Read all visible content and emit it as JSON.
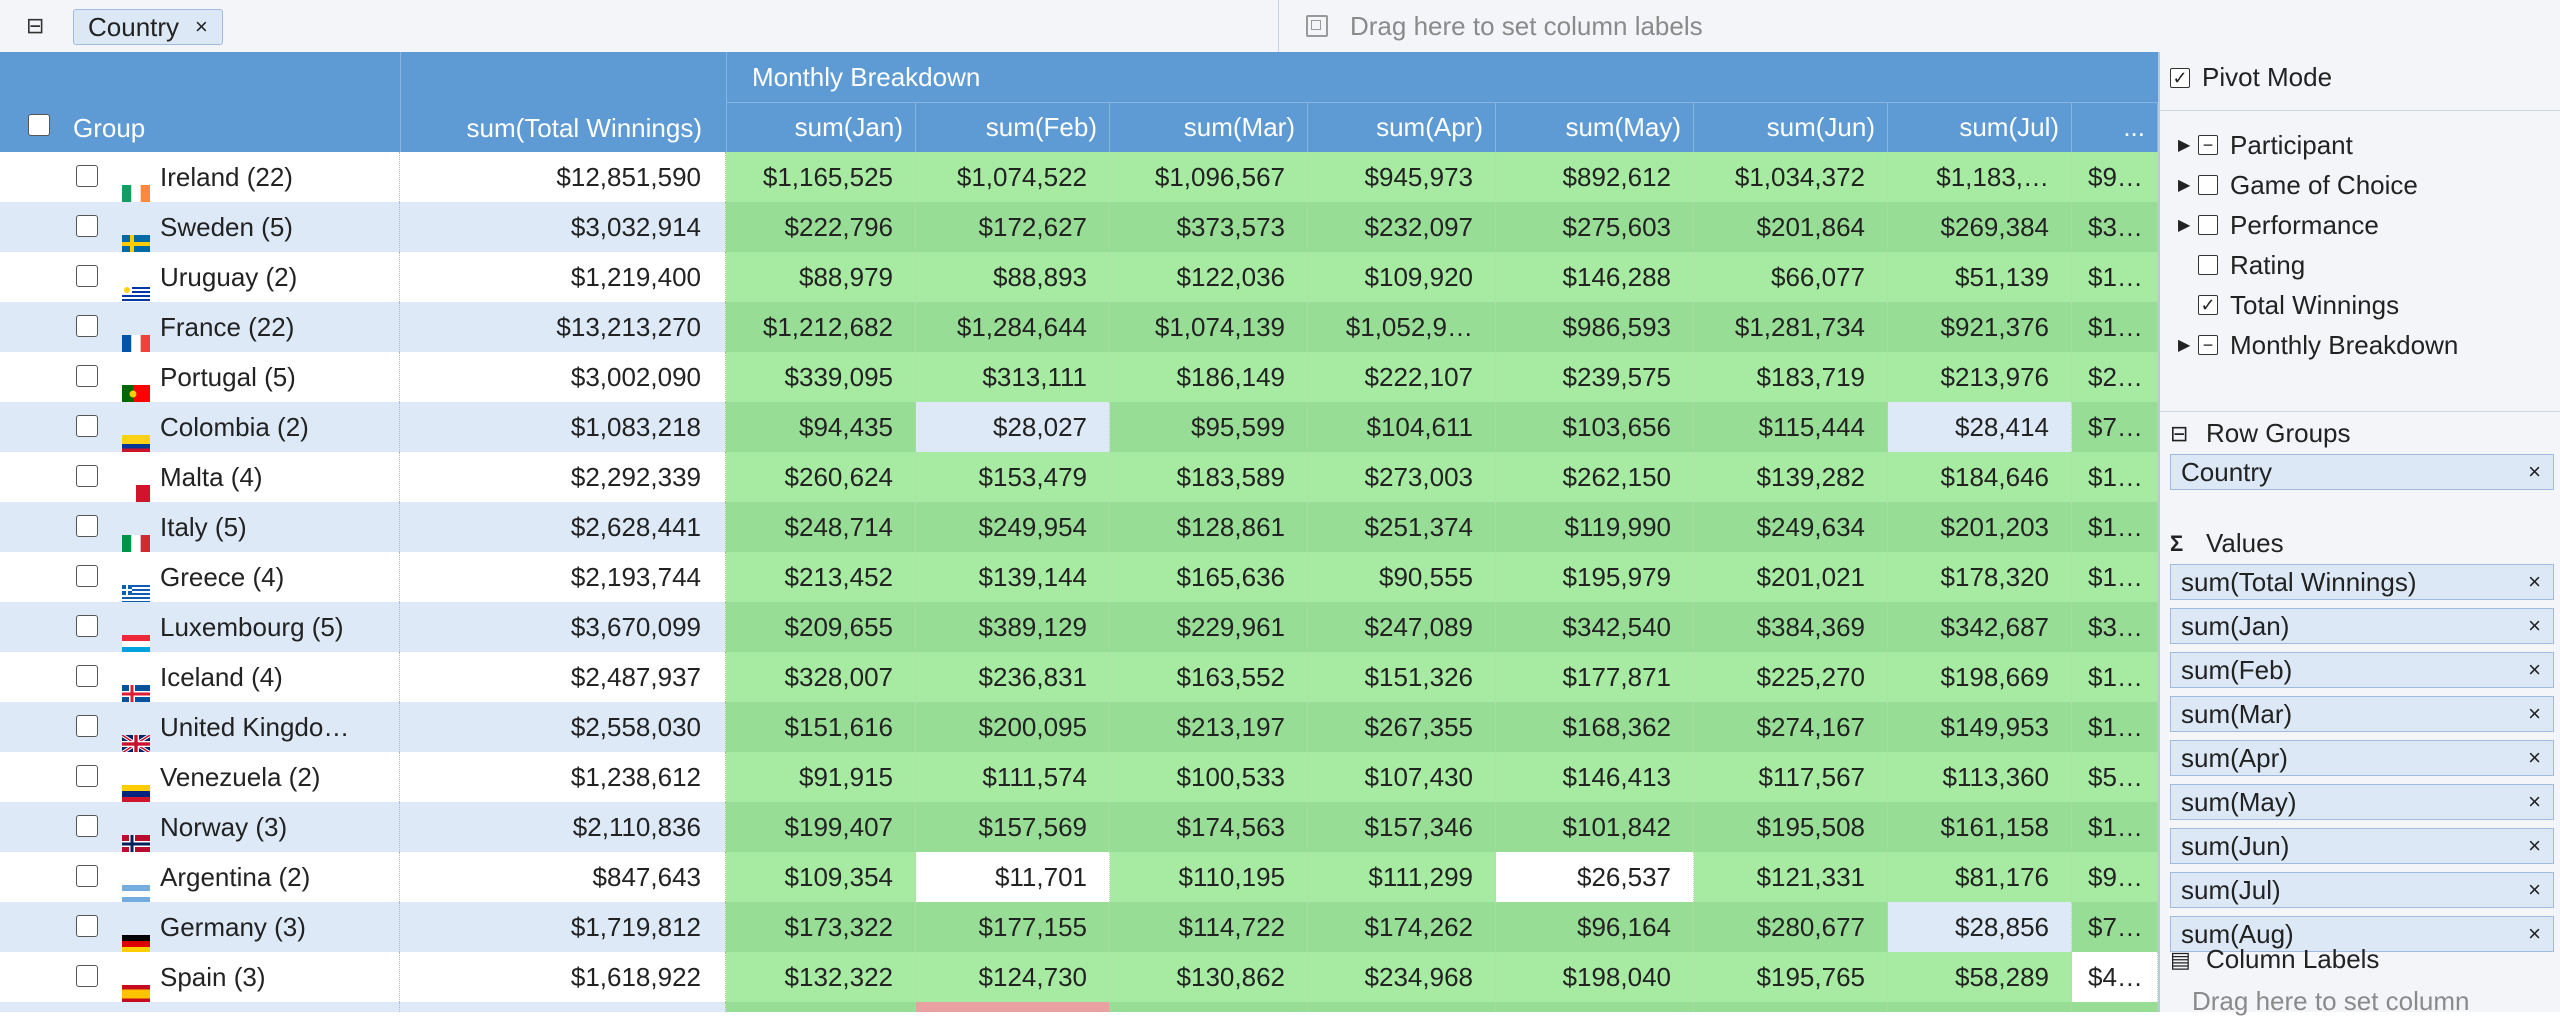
{
  "row_drop": {
    "chip_label": "Country",
    "chip_close": "×"
  },
  "col_drop": {
    "placeholder": "Drag here to set column labels"
  },
  "grid": {
    "group_header": "Group",
    "sum_header": "sum(Total Winnings)",
    "monthly_header": "Monthly Breakdown",
    "month_headers": [
      "sum(Jan)",
      "sum(Feb)",
      "sum(Mar)",
      "sum(Apr)",
      "sum(May)",
      "sum(Jun)",
      "sum(Jul)",
      "..."
    ],
    "rows": [
      {
        "name": "Ireland (22)",
        "flag": "ireland",
        "total": "$12,851,590",
        "m": [
          "$1,165,525",
          "$1,074,522",
          "$1,096,567",
          "$945,973",
          "$892,612",
          "$1,034,372",
          "$1,183,…",
          "$9…"
        ],
        "shade": [
          "h",
          "h",
          "h",
          "h",
          "h",
          "h",
          "h",
          "h"
        ]
      },
      {
        "name": "Sweden (5)",
        "flag": "sweden",
        "total": "$3,032,914",
        "m": [
          "$222,796",
          "$172,627",
          "$373,573",
          "$232,097",
          "$275,603",
          "$201,864",
          "$269,384",
          "$3…"
        ],
        "shade": [
          "h",
          "h",
          "h",
          "h",
          "h",
          "h",
          "h",
          "h"
        ]
      },
      {
        "name": "Uruguay (2)",
        "flag": "uruguay",
        "total": "$1,219,400",
        "m": [
          "$88,979",
          "$88,893",
          "$122,036",
          "$109,920",
          "$146,288",
          "$66,077",
          "$51,139",
          "$1…"
        ],
        "shade": [
          "h",
          "h",
          "h",
          "h",
          "h",
          "h",
          "h",
          "h"
        ]
      },
      {
        "name": "France (22)",
        "flag": "france",
        "total": "$13,213,270",
        "m": [
          "$1,212,682",
          "$1,284,644",
          "$1,074,139",
          "$1,052,9…",
          "$986,593",
          "$1,281,734",
          "$921,376",
          "$1…"
        ],
        "shade": [
          "h",
          "h",
          "h",
          "h",
          "h",
          "h",
          "h",
          "h"
        ]
      },
      {
        "name": "Portugal (5)",
        "flag": "portugal",
        "total": "$3,002,090",
        "m": [
          "$339,095",
          "$313,111",
          "$186,149",
          "$222,107",
          "$239,575",
          "$183,719",
          "$213,976",
          "$2…"
        ],
        "shade": [
          "h",
          "h",
          "h",
          "h",
          "h",
          "h",
          "h",
          "h"
        ]
      },
      {
        "name": "Colombia (2)",
        "flag": "colombia",
        "total": "$1,083,218",
        "m": [
          "$94,435",
          "$28,027",
          "$95,599",
          "$104,611",
          "$103,656",
          "$115,444",
          "$28,414",
          "$7…"
        ],
        "shade": [
          "h",
          "l",
          "h",
          "h",
          "h",
          "h",
          "l",
          "h"
        ]
      },
      {
        "name": "Malta (4)",
        "flag": "malta",
        "total": "$2,292,339",
        "m": [
          "$260,624",
          "$153,479",
          "$183,589",
          "$273,003",
          "$262,150",
          "$139,282",
          "$184,646",
          "$1…"
        ],
        "shade": [
          "h",
          "h",
          "h",
          "h",
          "h",
          "h",
          "h",
          "h"
        ]
      },
      {
        "name": "Italy (5)",
        "flag": "italy",
        "total": "$2,628,441",
        "m": [
          "$248,714",
          "$249,954",
          "$128,861",
          "$251,374",
          "$119,990",
          "$249,634",
          "$201,203",
          "$1…"
        ],
        "shade": [
          "h",
          "h",
          "h",
          "h",
          "h",
          "h",
          "h",
          "h"
        ]
      },
      {
        "name": "Greece (4)",
        "flag": "greece",
        "total": "$2,193,744",
        "m": [
          "$213,452",
          "$139,144",
          "$165,636",
          "$90,555",
          "$195,979",
          "$201,021",
          "$178,320",
          "$1…"
        ],
        "shade": [
          "h",
          "h",
          "h",
          "h",
          "h",
          "h",
          "h",
          "h"
        ]
      },
      {
        "name": "Luxembourg (5)",
        "flag": "luxembourg",
        "total": "$3,670,099",
        "m": [
          "$209,655",
          "$389,129",
          "$229,961",
          "$247,089",
          "$342,540",
          "$384,369",
          "$342,687",
          "$3…"
        ],
        "shade": [
          "h",
          "h",
          "h",
          "h",
          "h",
          "h",
          "h",
          "h"
        ]
      },
      {
        "name": "Iceland (4)",
        "flag": "iceland",
        "total": "$2,487,937",
        "m": [
          "$328,007",
          "$236,831",
          "$163,552",
          "$151,326",
          "$177,871",
          "$225,270",
          "$198,669",
          "$1…"
        ],
        "shade": [
          "h",
          "h",
          "h",
          "h",
          "h",
          "h",
          "h",
          "h"
        ]
      },
      {
        "name": "United Kingdo…",
        "flag": "uk",
        "total": "$2,558,030",
        "m": [
          "$151,616",
          "$200,095",
          "$213,197",
          "$267,355",
          "$168,362",
          "$274,167",
          "$149,953",
          "$1…"
        ],
        "shade": [
          "h",
          "h",
          "h",
          "h",
          "h",
          "h",
          "h",
          "h"
        ]
      },
      {
        "name": "Venezuela (2)",
        "flag": "venezuela",
        "total": "$1,238,612",
        "m": [
          "$91,915",
          "$111,574",
          "$100,533",
          "$107,430",
          "$146,413",
          "$117,567",
          "$113,360",
          "$5…"
        ],
        "shade": [
          "h",
          "h",
          "h",
          "h",
          "h",
          "h",
          "h",
          "h"
        ]
      },
      {
        "name": "Norway (3)",
        "flag": "norway",
        "total": "$2,110,836",
        "m": [
          "$199,407",
          "$157,569",
          "$174,563",
          "$157,346",
          "$101,842",
          "$195,508",
          "$161,158",
          "$1…"
        ],
        "shade": [
          "h",
          "h",
          "h",
          "h",
          "h",
          "h",
          "h",
          "h"
        ]
      },
      {
        "name": "Argentina (2)",
        "flag": "argentina",
        "total": "$847,643",
        "m": [
          "$109,354",
          "$11,701",
          "$110,195",
          "$111,299",
          "$26,537",
          "$121,331",
          "$81,176",
          "$9…"
        ],
        "shade": [
          "h",
          "l",
          "h",
          "h",
          "l",
          "h",
          "h",
          "h"
        ]
      },
      {
        "name": "Germany (3)",
        "flag": "germany",
        "total": "$1,719,812",
        "m": [
          "$173,322",
          "$177,155",
          "$114,722",
          "$174,262",
          "$96,164",
          "$280,677",
          "$28,856",
          "$7…"
        ],
        "shade": [
          "h",
          "h",
          "h",
          "h",
          "h",
          "h",
          "l",
          "h"
        ]
      },
      {
        "name": "Spain (3)",
        "flag": "spain",
        "total": "$1,618,922",
        "m": [
          "$132,322",
          "$124,730",
          "$130,862",
          "$234,968",
          "$198,040",
          "$195,765",
          "$58,289",
          "$4…"
        ],
        "shade": [
          "h",
          "h",
          "h",
          "h",
          "h",
          "h",
          "h",
          "l"
        ]
      },
      {
        "name": "",
        "flag": "",
        "total": "",
        "m": [
          "",
          "",
          "",
          "",
          "",
          "",
          "",
          ""
        ],
        "shade": [
          "h",
          "n",
          "h",
          "h",
          "h",
          "h",
          "h",
          "h"
        ]
      }
    ]
  },
  "side": {
    "pivot_mode": "Pivot Mode",
    "tree": [
      {
        "label": "Participant",
        "arrow": true,
        "state": "partial"
      },
      {
        "label": "Game of Choice",
        "arrow": true,
        "state": "empty"
      },
      {
        "label": "Performance",
        "arrow": true,
        "state": "empty"
      },
      {
        "label": "Rating",
        "arrow": false,
        "state": "empty"
      },
      {
        "label": "Total Winnings",
        "arrow": false,
        "state": "checked"
      },
      {
        "label": "Monthly Breakdown",
        "arrow": true,
        "state": "partial"
      }
    ],
    "row_groups_title": "Row Groups",
    "row_groups": [
      "Country"
    ],
    "values_title": "Values",
    "values": [
      "sum(Total Winnings)",
      "sum(Jan)",
      "sum(Feb)",
      "sum(Mar)",
      "sum(Apr)",
      "sum(May)",
      "sum(Jun)",
      "sum(Jul)",
      "sum(Aug)"
    ],
    "column_labels_title": "Column Labels",
    "column_labels_placeholder": "Drag here to set column",
    "close_glyph": "×"
  }
}
